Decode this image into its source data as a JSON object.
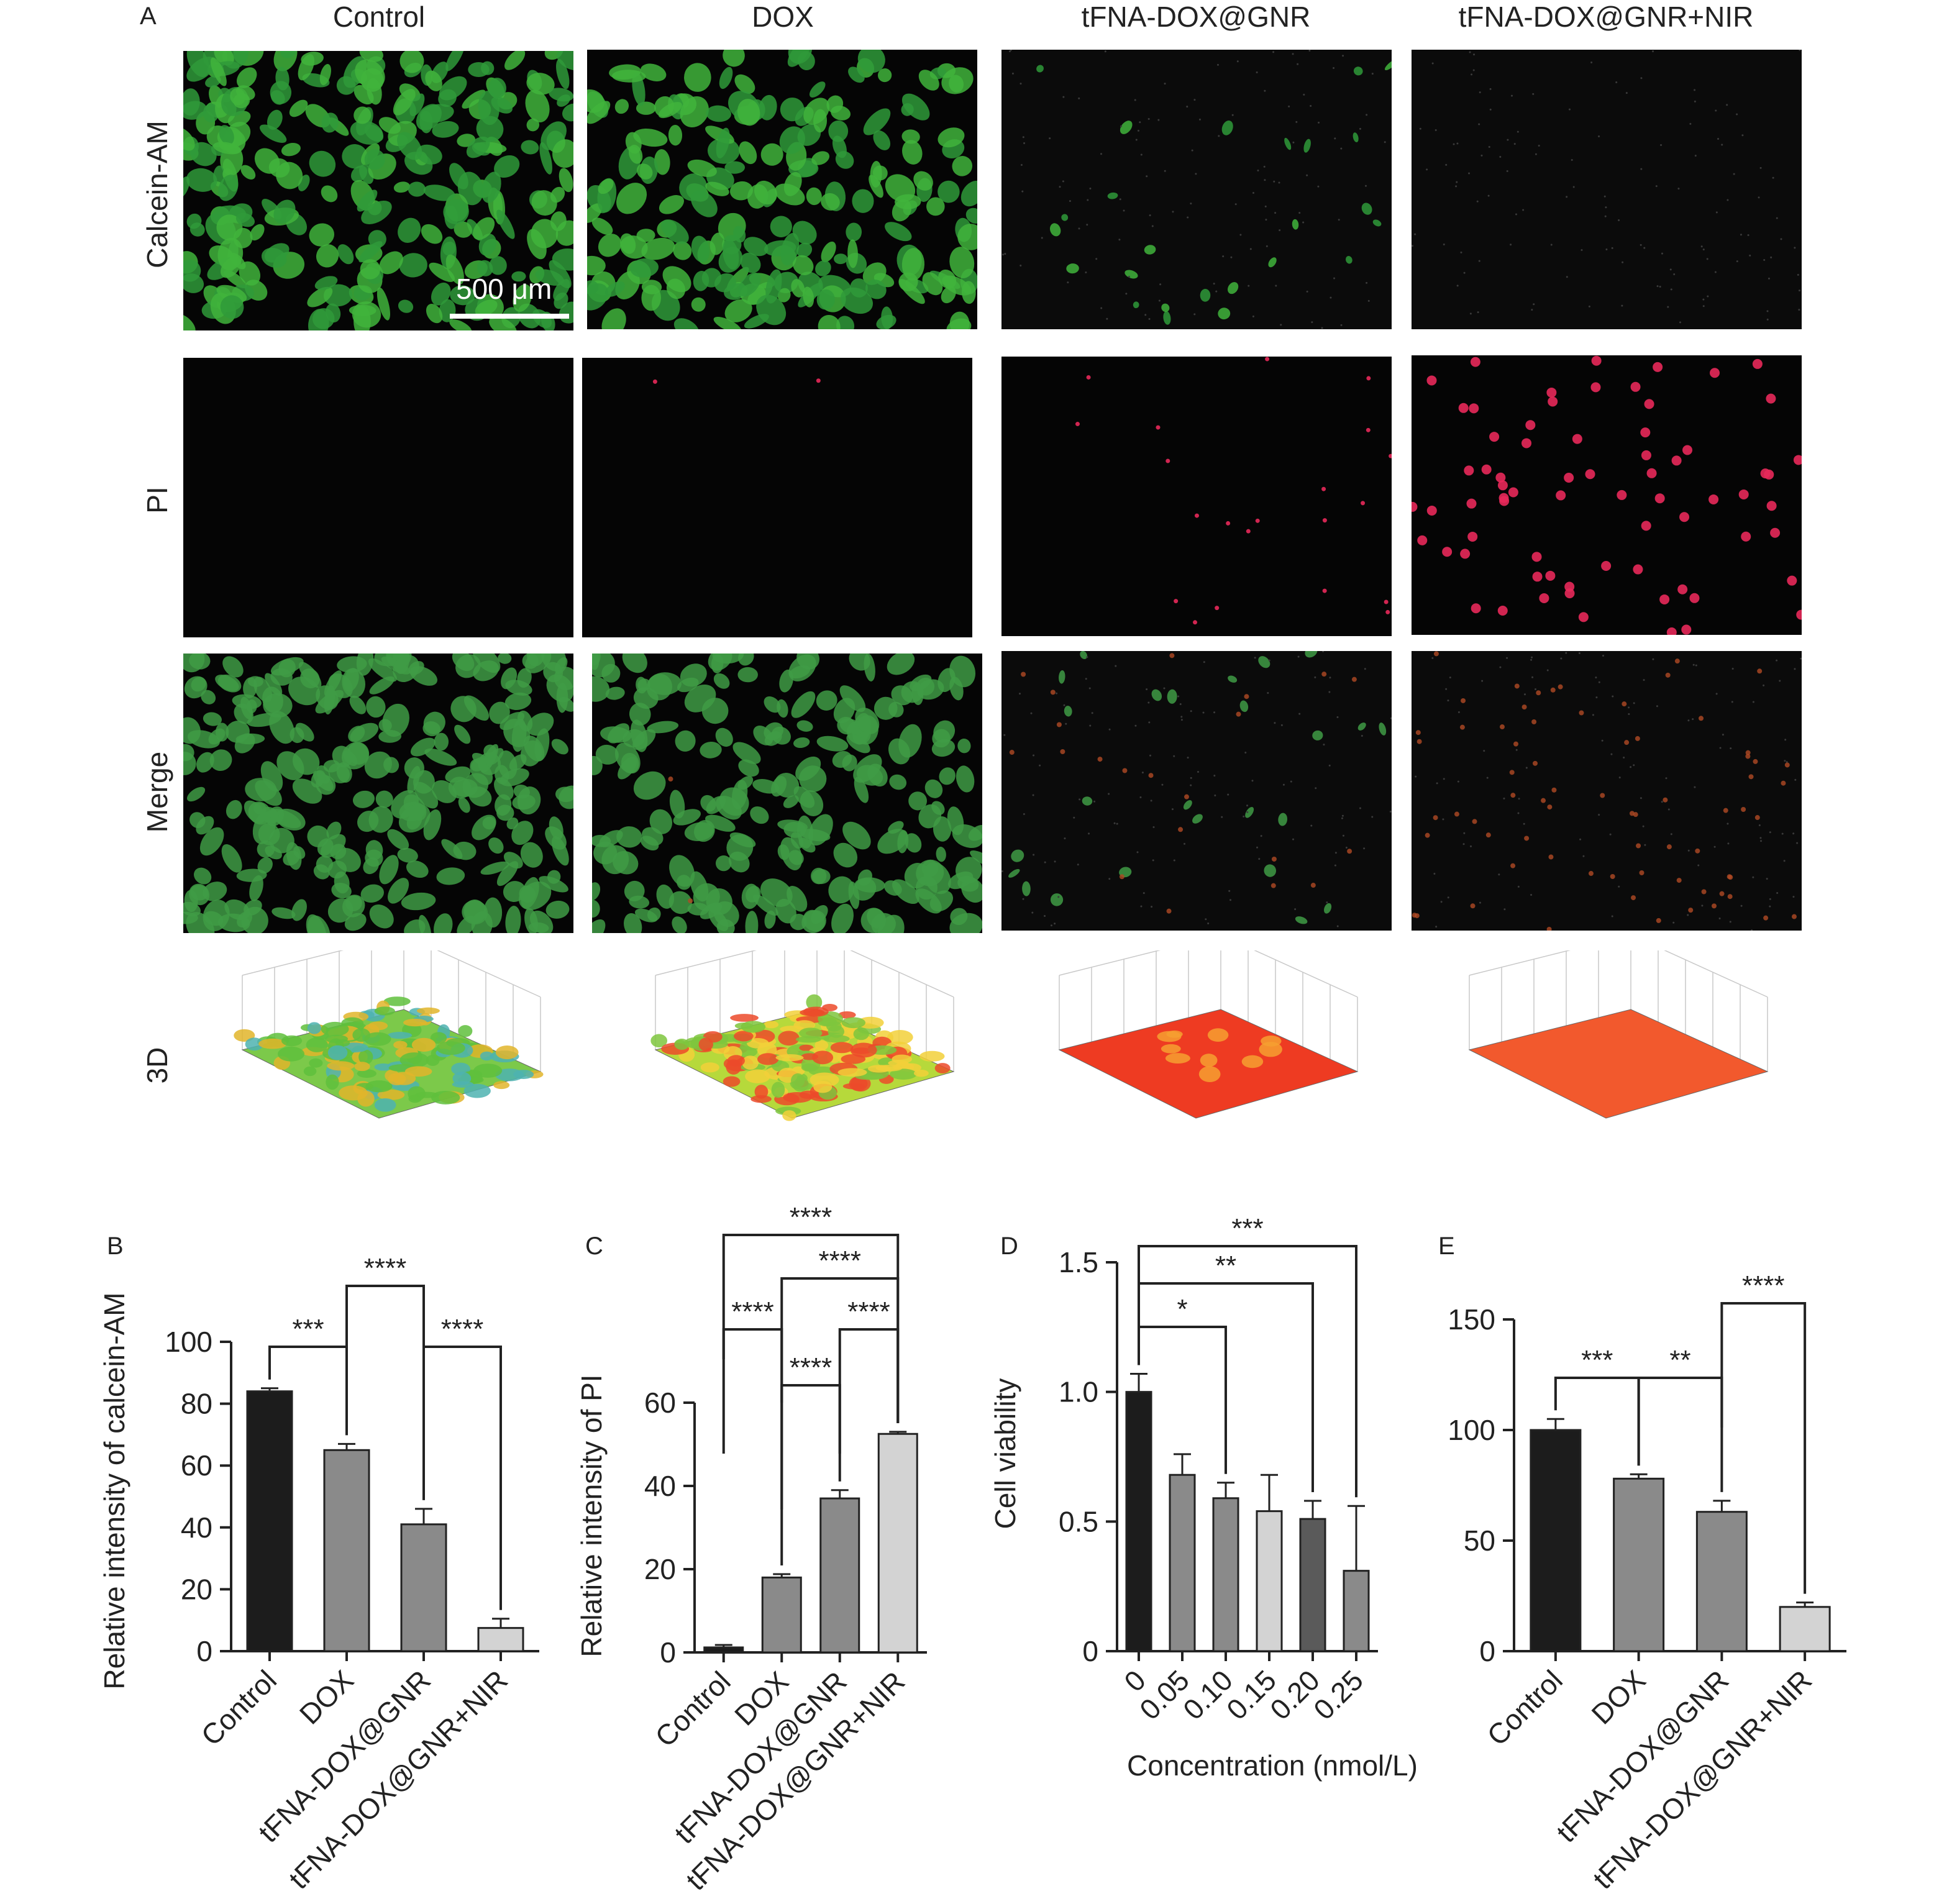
{
  "panelA": {
    "letter": "A",
    "columns": [
      "Control",
      "DOX",
      "tFNA-DOX@GNR",
      "tFNA-DOX@GNR+NIR"
    ],
    "rows": [
      "Calcein-AM",
      "PI",
      "Merge",
      "3D"
    ],
    "scalebar": "500 μm",
    "green_cell_density": [
      1.0,
      0.8,
      0.08,
      0.0
    ],
    "red_cell_density": [
      0.0,
      0.03,
      0.3,
      1.0
    ],
    "colors": {
      "live": "#3fae3a",
      "dead": "#e8295a",
      "surface_red": "#ee3b22",
      "surface_orange": "#f2592d"
    }
  },
  "chart_data": [
    {
      "panel": "B",
      "type": "bar",
      "categories": [
        "Control",
        "DOX",
        "tFNA-DOX@GNR",
        "tFNA-DOX@GNR+NIR"
      ],
      "values": [
        84,
        65,
        41,
        7.5
      ],
      "errors": [
        1,
        2,
        5,
        3
      ],
      "colors": [
        "#1c1c1c",
        "#8a8a8a",
        "#8a8a8a",
        "#d3d3d3"
      ],
      "ylabel": "Relative intensity of calcein-AM",
      "ylim": [
        0,
        100
      ],
      "yticks": [
        0,
        20,
        40,
        60,
        80,
        100
      ],
      "brackets": [
        {
          "from": 0,
          "to": 1,
          "label": "***",
          "level": 1
        },
        {
          "from": 1,
          "to": 2,
          "label": "****",
          "level": 2
        },
        {
          "from": 2,
          "to": 3,
          "label": "****",
          "level": 1
        }
      ]
    },
    {
      "panel": "C",
      "type": "bar",
      "categories": [
        "Control",
        "DOX",
        "tFNA-DOX@GNR",
        "tFNA-DOX@GNR+NIR"
      ],
      "values": [
        1.2,
        18,
        37,
        52.5
      ],
      "errors": [
        0.6,
        0.8,
        2,
        0.5
      ],
      "colors": [
        "#1c1c1c",
        "#8a8a8a",
        "#8a8a8a",
        "#d3d3d3"
      ],
      "ylabel": "Relative intensity of PI",
      "ylim": [
        0,
        60
      ],
      "yticks": [
        0,
        20,
        40,
        60
      ],
      "brackets": [
        {
          "from": 1,
          "to": 2,
          "label": "****",
          "level": 1
        },
        {
          "from": 0,
          "to": 1,
          "label": "****",
          "level": 2
        },
        {
          "from": 2,
          "to": 3,
          "label": "****",
          "level": 2
        },
        {
          "from": 1,
          "to": 3,
          "label": "****",
          "level": 3
        },
        {
          "from": 0,
          "to": 3,
          "label": "****",
          "level": 4
        }
      ]
    },
    {
      "panel": "D",
      "type": "bar",
      "categories": [
        "0",
        "0.05",
        "0.10",
        "0.15",
        "0.20",
        "0.25"
      ],
      "values": [
        1.0,
        0.68,
        0.59,
        0.54,
        0.51,
        0.31
      ],
      "errors": [
        0.07,
        0.08,
        0.06,
        0.14,
        0.07,
        0.25
      ],
      "colors": [
        "#1c1c1c",
        "#8a8a8a",
        "#8a8a8a",
        "#d3d3d3",
        "#5a5a5a",
        "#8a8a8a"
      ],
      "ylabel": "Cell viability",
      "xlabel": "Concentration (nmol/L)",
      "ylim": [
        0,
        1.5
      ],
      "yticks": [
        0,
        0.5,
        1.0,
        1.5
      ],
      "ytick_labels": [
        "0",
        "0.5",
        "1.0",
        "1.5"
      ],
      "brackets": [
        {
          "from": 0,
          "to": 2,
          "label": "*",
          "level": 1
        },
        {
          "from": 0,
          "to": 4,
          "label": "**",
          "level": 2
        },
        {
          "from": 0,
          "to": 5,
          "label": "***",
          "level": 3
        }
      ]
    },
    {
      "panel": "E",
      "type": "bar",
      "categories": [
        "Control",
        "DOX",
        "tFNA-DOX@GNR",
        "tFNA-DOX@GNR+NIR"
      ],
      "values": [
        100,
        78,
        63,
        20
      ],
      "errors": [
        5,
        2,
        5,
        2
      ],
      "colors": [
        "#1c1c1c",
        "#8a8a8a",
        "#8a8a8a",
        "#d3d3d3"
      ],
      "ylabel": "",
      "ylim": [
        0,
        150
      ],
      "yticks": [
        0,
        50,
        100,
        150
      ],
      "brackets": [
        {
          "from": 0,
          "to": 1,
          "label": "***",
          "level": 1
        },
        {
          "from": 1,
          "to": 2,
          "label": "**",
          "level": 1
        },
        {
          "from": 2,
          "to": 3,
          "label": "****",
          "level": 2
        }
      ]
    }
  ]
}
